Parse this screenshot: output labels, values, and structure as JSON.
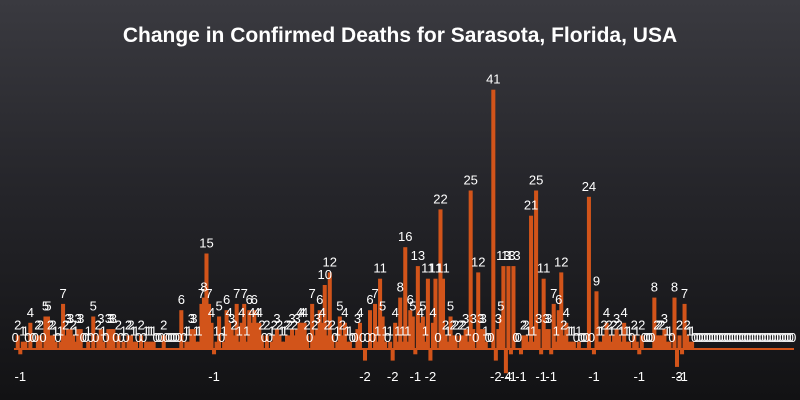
{
  "chart_data": {
    "type": "bar",
    "title": "Change in Confirmed Deaths for Sarasota, Florida, USA",
    "xlabel": "",
    "ylabel": "",
    "bar_color": "#d2541a",
    "background_top": "#3a3a40",
    "background_bottom": "#121214",
    "text_color": "#ffffff",
    "values": [
      0,
      2,
      -1,
      1,
      1,
      0,
      4,
      0,
      0,
      2,
      2,
      0,
      5,
      5,
      2,
      2,
      1,
      0,
      1,
      7,
      2,
      3,
      3,
      2,
      1,
      3,
      3,
      0,
      0,
      1,
      0,
      5,
      0,
      2,
      3,
      1,
      0,
      3,
      3,
      3,
      0,
      2,
      0,
      1,
      0,
      2,
      2,
      1,
      1,
      0,
      2,
      0,
      1,
      1,
      1,
      1,
      0,
      0,
      0,
      2,
      0,
      0,
      0,
      0,
      0,
      0,
      6,
      0,
      1,
      1,
      3,
      3,
      1,
      1,
      7,
      8,
      15,
      7,
      4,
      -1,
      1,
      5,
      0,
      1,
      6,
      4,
      3,
      2,
      7,
      1,
      4,
      7,
      1,
      6,
      4,
      6,
      4,
      4,
      2,
      0,
      2,
      0,
      1,
      2,
      3,
      2,
      1,
      1,
      2,
      2,
      3,
      2,
      3,
      4,
      4,
      4,
      2,
      0,
      7,
      2,
      3,
      6,
      4,
      10,
      2,
      12,
      2,
      0,
      1,
      5,
      2,
      4,
      1,
      1,
      0,
      0,
      3,
      4,
      0,
      -2,
      0,
      6,
      0,
      7,
      1,
      11,
      5,
      1,
      0,
      1,
      -2,
      4,
      1,
      8,
      1,
      16,
      1,
      6,
      5,
      -1,
      13,
      4,
      5,
      1,
      11,
      -2,
      4,
      11,
      0,
      22,
      11,
      2,
      1,
      5,
      2,
      2,
      0,
      2,
      2,
      3,
      1,
      25,
      3,
      0,
      12,
      3,
      3,
      1,
      0,
      0,
      41,
      -2,
      3,
      5,
      13,
      -4,
      13,
      -1,
      13,
      0,
      0,
      -1,
      2,
      2,
      1,
      21,
      1,
      25,
      3,
      -1,
      11,
      3,
      3,
      -1,
      7,
      1,
      6,
      12,
      2,
      4,
      1,
      1,
      1,
      0,
      1,
      0,
      0,
      0,
      24,
      0,
      -1,
      9,
      1,
      1,
      2,
      4,
      2,
      1,
      2,
      3,
      2,
      1,
      4,
      1,
      1,
      0,
      2,
      1,
      -1,
      2,
      0,
      0,
      0,
      0,
      8,
      2,
      2,
      2,
      3,
      1,
      1,
      0,
      8,
      -3,
      2,
      -1,
      7,
      2,
      1,
      1,
      0,
      0,
      0,
      0,
      0,
      0,
      0,
      0,
      0,
      0,
      0,
      0,
      0,
      0,
      0,
      0,
      0,
      0,
      0,
      0,
      0,
      0,
      0,
      0,
      0,
      0,
      0,
      0,
      0,
      0,
      0,
      0,
      0,
      0,
      0,
      0,
      0,
      0,
      0,
      0
    ],
    "ylim": [
      -4,
      41
    ],
    "grid": false,
    "legend": "none"
  }
}
